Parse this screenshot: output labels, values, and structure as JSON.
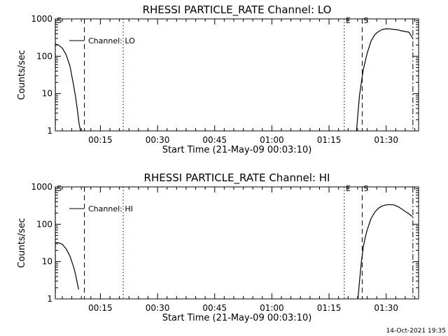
{
  "chart_data": [
    {
      "type": "line",
      "title": "RHESSI PARTICLE_RATE Channel: LO",
      "xlabel": "Start Time (21-May-09 00:03:10)",
      "ylabel": "Counts/sec",
      "yscale": "log",
      "ylim": [
        1,
        1000
      ],
      "xlim_minutes": [
        3.17,
        98.5
      ],
      "x_tick_labels": [
        "00:15",
        "00:30",
        "00:45",
        "01:00",
        "01:15",
        "01:30"
      ],
      "y_tick_labels": [
        "1",
        "10",
        "100",
        "1000"
      ],
      "legend": {
        "label": "Channel: LO",
        "placement": "top-left"
      },
      "markers": [
        {
          "label": "S",
          "minute": 3.2,
          "style": "dashdot"
        },
        {
          "label": "",
          "minute": 10.8,
          "style": "dashed"
        },
        {
          "label": "",
          "minute": 21.0,
          "style": "dotted"
        },
        {
          "label": "E",
          "minute": 79.0,
          "style": "dotted"
        },
        {
          "label": "S",
          "minute": 83.7,
          "style": "dashed"
        },
        {
          "label": "",
          "minute": 97.0,
          "style": "dashdot"
        }
      ],
      "series": [
        {
          "name": "Channel: LO",
          "segments": [
            {
              "minutes": [
                3.2,
                4.0,
                5.0,
                6.0,
                7.0,
                8.0,
                8.5,
                9.0,
                9.4,
                9.8
              ],
              "values": [
                210,
                200,
                165,
                110,
                55,
                16,
                8,
                3.5,
                1.6,
                1.0
              ]
            },
            {
              "minutes": [
                82.2,
                82.6,
                83.0,
                83.5,
                84.0,
                85.0,
                86.0,
                87.0,
                88.0,
                89.0,
                90.0,
                91.0,
                92.0,
                93.0,
                94.0,
                95.0,
                96.0,
                96.5,
                97.0
              ],
              "values": [
                1.0,
                3.0,
                9.0,
                20,
                45,
                120,
                250,
                380,
                460,
                520,
                545,
                540,
                520,
                510,
                480,
                460,
                440,
                360,
                300
              ]
            }
          ]
        }
      ]
    },
    {
      "type": "line",
      "title": "RHESSI PARTICLE_RATE Channel: HI",
      "xlabel": "Start Time (21-May-09 00:03:10)",
      "ylabel": "Counts/sec",
      "yscale": "log",
      "ylim": [
        1,
        1000
      ],
      "xlim_minutes": [
        3.17,
        98.5
      ],
      "x_tick_labels": [
        "00:15",
        "00:30",
        "00:45",
        "01:00",
        "01:15",
        "01:30"
      ],
      "y_tick_labels": [
        "1",
        "10",
        "100",
        "1000"
      ],
      "legend": {
        "label": "Channel: HI",
        "placement": "top-left"
      },
      "markers": [
        {
          "label": "S",
          "minute": 3.2,
          "style": "dashdot"
        },
        {
          "label": "",
          "minute": 10.8,
          "style": "dashed"
        },
        {
          "label": "",
          "minute": 21.0,
          "style": "dotted"
        },
        {
          "label": "E",
          "minute": 79.0,
          "style": "dotted"
        },
        {
          "label": "S",
          "minute": 83.7,
          "style": "dashed"
        },
        {
          "label": "",
          "minute": 97.0,
          "style": "dashdot"
        }
      ],
      "series": [
        {
          "name": "Channel: HI",
          "segments": [
            {
              "minutes": [
                3.2,
                4.0,
                5.0,
                6.0,
                7.0,
                7.5,
                8.0,
                8.5,
                9.0,
                9.3
              ],
              "values": [
                32,
                32,
                29,
                22,
                14,
                10,
                7,
                4.5,
                2.5,
                1.8
              ]
            },
            {
              "minutes": [
                82.6,
                83.0,
                83.5,
                84.0,
                84.5,
                85.0,
                86.0,
                87.0,
                88.0,
                89.0,
                90.0,
                91.0,
                92.0,
                93.0,
                94.0,
                95.0,
                96.0,
                96.5,
                97.0
              ],
              "values": [
                1.0,
                3.0,
                10,
                25,
                45,
                70,
                140,
                210,
                270,
                310,
                330,
                335,
                330,
                300,
                260,
                220,
                190,
                170,
                160
              ]
            }
          ]
        }
      ]
    }
  ],
  "footer": {
    "timestamp": "14-Oct-2021 19:35"
  }
}
